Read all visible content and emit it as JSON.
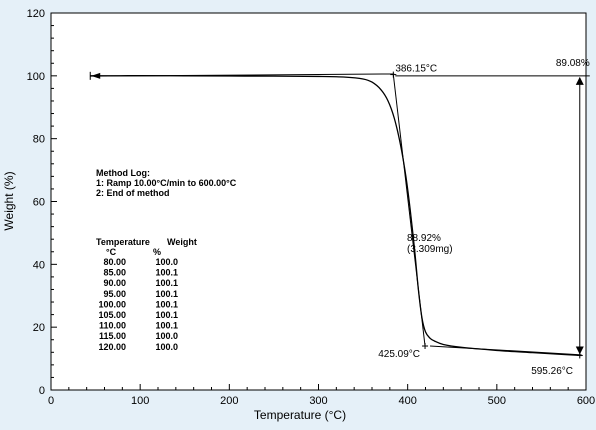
{
  "chart_data": {
    "type": "line",
    "xlabel": "Temperature (°C)",
    "ylabel": "Weight (%)",
    "xlim": [
      0,
      600
    ],
    "ylim": [
      0,
      120
    ],
    "x_ticks": [
      0,
      100,
      200,
      300,
      400,
      500,
      600
    ],
    "y_ticks": [
      0,
      20,
      40,
      60,
      80,
      100,
      120
    ],
    "grid": false,
    "series": [
      {
        "x": [
          44,
          100,
          150,
          200,
          250,
          300,
          330,
          350,
          360,
          370,
          378,
          385,
          392,
          398,
          403,
          408,
          412,
          416,
          420,
          425,
          430,
          440,
          460,
          500,
          540,
          570,
          595
        ],
        "y": [
          100.0,
          100.05,
          100.0,
          99.95,
          99.9,
          99.8,
          99.6,
          99.0,
          98.0,
          95.6,
          92.0,
          86.5,
          78.0,
          68.0,
          57.0,
          44.0,
          32.0,
          23.0,
          18.5,
          16.5,
          15.6,
          14.5,
          13.6,
          12.6,
          11.9,
          11.4,
          11.0
        ]
      }
    ],
    "annotations": {
      "onset_label": "386.15°C",
      "end_label": "425.09°C",
      "final_temp_label": "595.26°C",
      "initial_weight_label": "89.08%",
      "step_percent_label": "88.92%",
      "step_mass_label": "(3.309mg)",
      "onset": {
        "x": 386.15,
        "y": 100.4
      },
      "end": {
        "x": 425.09,
        "y": 14.0
      },
      "final": {
        "x": 595.26,
        "y": 11.0
      },
      "arrow_x": 575,
      "arrow_top_y": 100,
      "arrow_bottom_y": 11,
      "tangent_top": {
        "x": 44,
        "y": 99.9
      },
      "tangent_mid_top": {
        "x": 385,
        "y": 100.6
      },
      "tangent_mid_bottom": {
        "x": 420,
        "y": 14.5
      },
      "tangent_bottom_end": {
        "x": 595,
        "y": 11.2
      },
      "start_marker": {
        "x": 44,
        "y": 100
      }
    },
    "method_log": {
      "title": "Method Log:",
      "lines": [
        "1: Ramp 10.00°C/min to 600.00°C",
        "2: End of method"
      ]
    },
    "table": {
      "headers": [
        "Temperature",
        "Weight"
      ],
      "units": [
        "°C",
        "%"
      ],
      "rows": [
        [
          "80.00",
          "100.0"
        ],
        [
          "85.00",
          "100.1"
        ],
        [
          "90.00",
          "100.1"
        ],
        [
          "95.00",
          "100.1"
        ],
        [
          "100.00",
          "100.1"
        ],
        [
          "105.00",
          "100.1"
        ],
        [
          "110.00",
          "100.1"
        ],
        [
          "115.00",
          "100.0"
        ],
        [
          "120.00",
          "100.0"
        ]
      ]
    }
  },
  "colors": {
    "background": "#e5f0f8",
    "plot_background": "#ffffff",
    "line": "#000000"
  }
}
